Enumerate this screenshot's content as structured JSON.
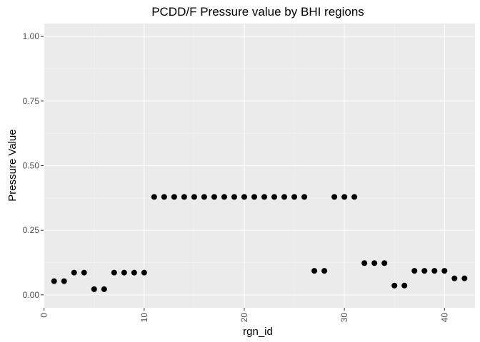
{
  "chart_data": {
    "type": "scatter",
    "title": "PCDD/F Pressure value by BHI regions",
    "xlabel": "rgn_id",
    "ylabel": "Pressure Value",
    "xlim": [
      -0.05,
      43.05
    ],
    "ylim": [
      -0.05,
      1.05
    ],
    "x_ticks": [
      0,
      10,
      20,
      30,
      40
    ],
    "x_minor_ticks": [
      5,
      15,
      25,
      35
    ],
    "y_ticks": [
      0.0,
      0.25,
      0.5,
      0.75,
      1.0
    ],
    "y_minor_ticks": [
      0.125,
      0.375,
      0.625,
      0.875
    ],
    "x_tick_labels": [
      "0",
      "10",
      "20",
      "30",
      "40"
    ],
    "y_tick_labels": [
      "0.00",
      "0.25",
      "0.50",
      "0.75",
      "1.00"
    ],
    "x_tick_label_rotation": "vertical",
    "grid": true,
    "legend": "none",
    "series": [
      {
        "x": [
          1,
          2,
          3,
          4,
          5,
          6,
          7,
          8,
          9,
          10,
          11,
          12,
          13,
          14,
          15,
          16,
          17,
          18,
          19,
          20,
          21,
          22,
          23,
          24,
          25,
          26,
          27,
          28,
          29,
          30,
          31,
          32,
          33,
          34,
          35,
          36,
          37,
          38,
          39,
          40,
          41,
          42
        ],
        "y": [
          0.053,
          0.053,
          0.086,
          0.086,
          0.022,
          0.022,
          0.086,
          0.086,
          0.086,
          0.086,
          0.379,
          0.379,
          0.379,
          0.379,
          0.379,
          0.379,
          0.379,
          0.379,
          0.379,
          0.379,
          0.379,
          0.379,
          0.379,
          0.379,
          0.379,
          0.379,
          0.093,
          0.093,
          0.379,
          0.379,
          0.379,
          0.123,
          0.123,
          0.123,
          0.036,
          0.036,
          0.093,
          0.093,
          0.093,
          0.093,
          0.064,
          0.064
        ]
      }
    ],
    "colors": {
      "panel_background": "#ebebeb",
      "grid_major": "#ffffff",
      "grid_minor": "#f4f4f4",
      "point": "#000000",
      "tick_text": "#4d4d4d"
    }
  }
}
